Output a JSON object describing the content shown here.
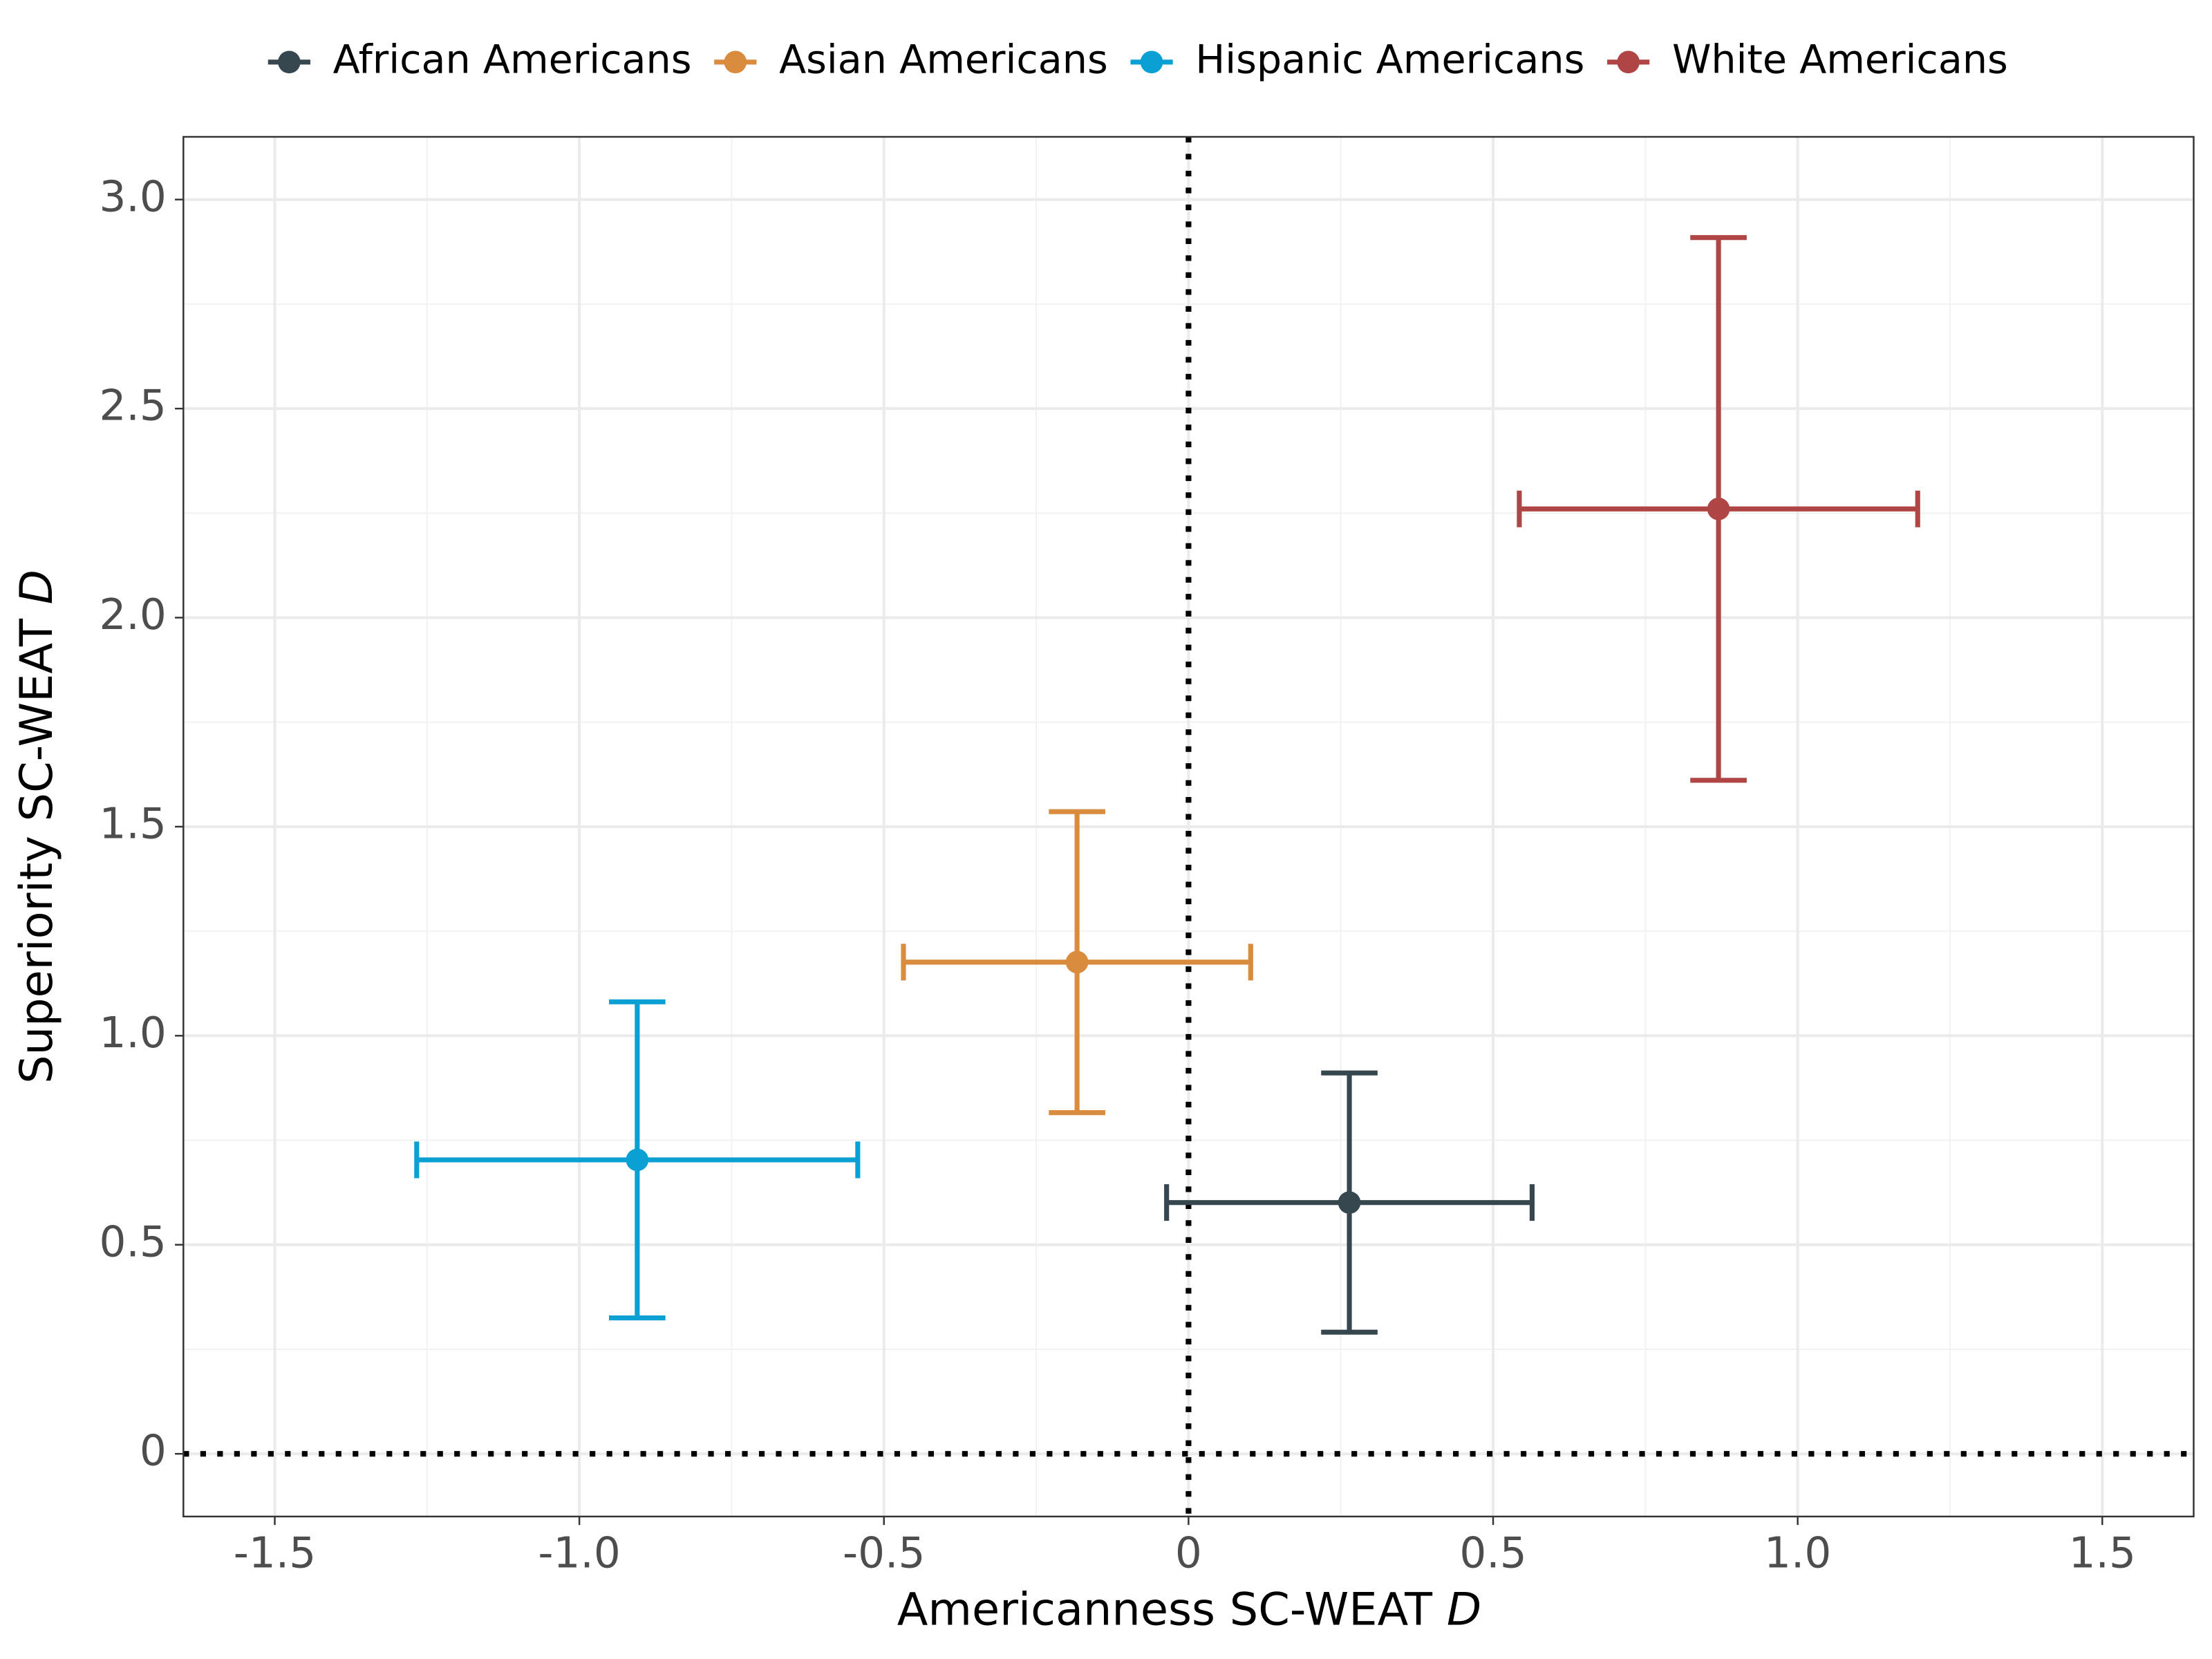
{
  "chart_data": {
    "type": "errorscatter",
    "x_label": "Americanness SC-WEAT",
    "x_label_symbol": "D",
    "y_label": "Superiority SC-WEAT",
    "y_label_symbol": "D",
    "xlim": [
      -1.65,
      1.65
    ],
    "xticks": [
      -1.5,
      {
        "value": -1,
        "label": "-1.0"
      },
      -0.5,
      0,
      0.5,
      {
        "value": 1,
        "label": "1.0"
      },
      1.5
    ],
    "ylim": [
      -0.15,
      3.15
    ],
    "yticks": [
      0,
      0.5,
      {
        "value": 1,
        "label": "1.0"
      },
      1.5,
      {
        "value": 2,
        "label": "2.0"
      },
      2.5,
      {
        "value": 3,
        "label": "3.0"
      }
    ],
    "grid": true,
    "minor_grid": true,
    "vline": 0,
    "hline": 0,
    "legend": "top",
    "series": [
      {
        "name": "African Americans",
        "color": "#37474f",
        "x": 0.264,
        "y": 0.601,
        "xerr": 0.3,
        "yerr": 0.31
      },
      {
        "name": "Asian Americans",
        "color": "#d98b3e",
        "x": -0.183,
        "y": 1.176,
        "xerr": 0.285,
        "yerr": 0.36
      },
      {
        "name": "Hispanic Americans",
        "color": "#0aa0d4",
        "x": -0.905,
        "y": 0.703,
        "xerr": 0.362,
        "yerr": 0.378
      },
      {
        "name": "White Americans",
        "color": "#b04545",
        "x": 0.87,
        "y": 2.26,
        "xerr": 0.327,
        "yerr": 0.649
      }
    ]
  }
}
